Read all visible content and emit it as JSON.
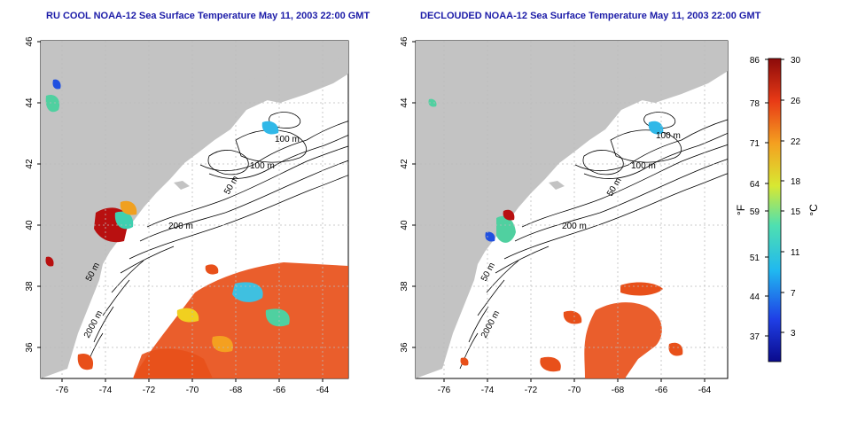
{
  "maps": [
    {
      "title": "RU COOL NOAA-12 Sea Surface Temperature May 11, 2003 22:00 GMT",
      "contour_labels": [
        "100 m",
        "100 m",
        "50 m",
        "200 m",
        "50 m",
        "2000 m"
      ]
    },
    {
      "title": "DECLOUDED NOAA-12 Sea Surface Temperature May 11, 2003 22:00 GMT",
      "contour_labels": [
        "100 m",
        "100 m",
        "50 m",
        "200 m",
        "50 m",
        "2000 m"
      ]
    }
  ],
  "axes": {
    "x_ticks": [
      "-76",
      "-74",
      "-72",
      "-70",
      "-68",
      "-66",
      "-64"
    ],
    "y_ticks": [
      "46",
      "44",
      "42",
      "40",
      "38",
      "36"
    ]
  },
  "colorbar": {
    "fahrenheit_label": "°F",
    "celsius_label": "°C",
    "fahrenheit_ticks": [
      "86",
      "78",
      "71",
      "64",
      "59",
      "51",
      "44",
      "37"
    ],
    "celsius_ticks": [
      "30",
      "26",
      "22",
      "18",
      "15",
      "11",
      "7",
      "3"
    ],
    "stops": [
      "#0a0a8c",
      "#1f3fe6",
      "#20b8f0",
      "#4fe0b0",
      "#d8e832",
      "#f4a020",
      "#e83a16",
      "#8c0a0a"
    ]
  },
  "colors": {
    "land": "#c3c3c3",
    "ocean": "#ffffff",
    "contour": "#000000",
    "grid": "#bbbbbb",
    "title": "#1c1ca8"
  }
}
